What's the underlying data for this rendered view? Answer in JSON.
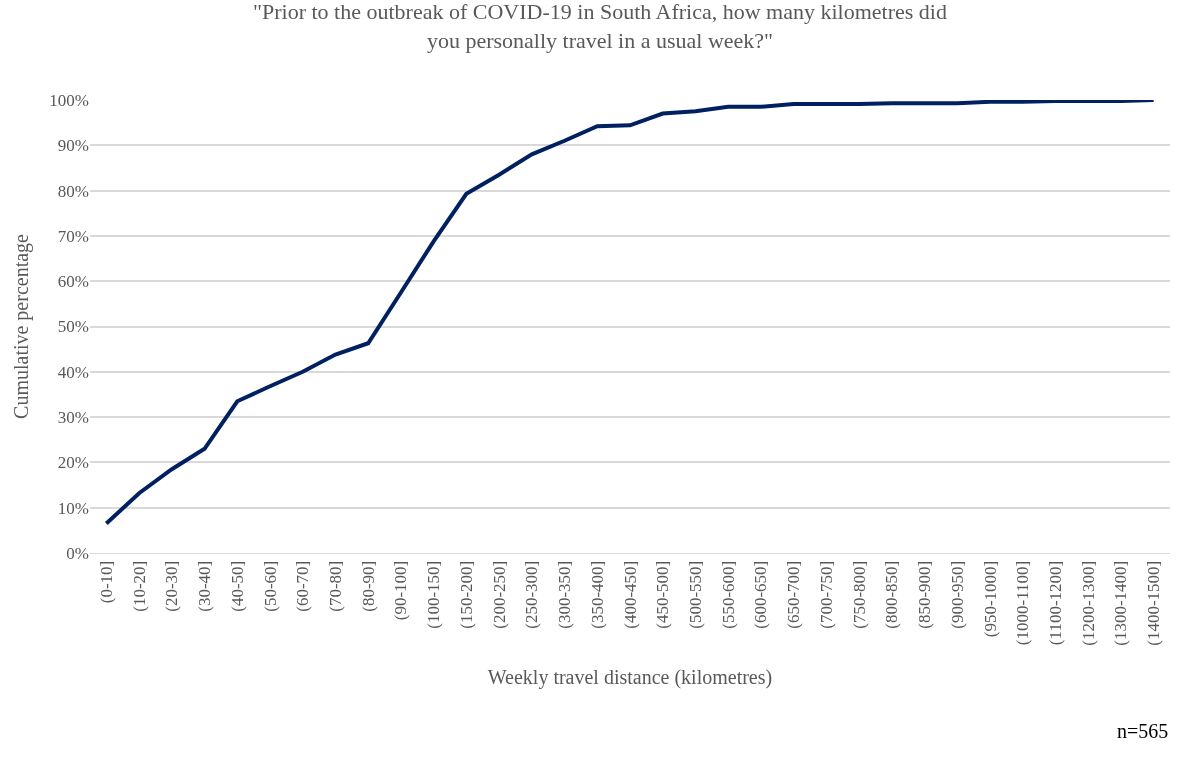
{
  "chart_data": {
    "type": "line",
    "title": "\"Prior to the outbreak of COVID-19 in South Africa, how many kilometres did you personally travel in a usual week?\"",
    "xlabel": "Weekly travel distance (kilometres)",
    "ylabel": "Cumulative percentage",
    "categories": [
      "(0-10]",
      "(10-20]",
      "(20-30]",
      "(30-40]",
      "(40-50]",
      "(50-60]",
      "(60-70]",
      "(70-80]",
      "(80-90]",
      "(90-100]",
      "(100-150]",
      "(150-200]",
      "(200-250]",
      "(250-300]",
      "(300-350]",
      "(350-400]",
      "(400-450]",
      "(450-500]",
      "(500-550]",
      "(550-600]",
      "(600-650]",
      "(650-700]",
      "(700-750]",
      "(750-800]",
      "(800-850]",
      "(850-900]",
      "(900-950]",
      "(950-1000]",
      "(1000-1100]",
      "(1100-1200]",
      "(1200-1300]",
      "(1300-1400]",
      "(1400-1500]"
    ],
    "series": [
      {
        "color": "#002060",
        "values": [
          6.5,
          13.2,
          18.5,
          23,
          33.5,
          36.8,
          40,
          43.8,
          46.3,
          57.5,
          68.8,
          79.3,
          83.5,
          88,
          91,
          94.2,
          94.4,
          97,
          97.5,
          98.5,
          98.5,
          99.1,
          99.1,
          99.1,
          99.3,
          99.3,
          99.3,
          99.6,
          99.6,
          99.8,
          99.8,
          99.8,
          100
        ]
      }
    ],
    "ylim": [
      0,
      100
    ],
    "yticks": [
      {
        "value": 0,
        "label": "0%"
      },
      {
        "value": 10,
        "label": "10%"
      },
      {
        "value": 20,
        "label": "20%"
      },
      {
        "value": 30,
        "label": "30%"
      },
      {
        "value": 40,
        "label": "40%"
      },
      {
        "value": 50,
        "label": "50%"
      },
      {
        "value": 60,
        "label": "60%"
      },
      {
        "value": 70,
        "label": "70%"
      },
      {
        "value": 80,
        "label": "80%"
      },
      {
        "value": 90,
        "label": "90%"
      },
      {
        "value": 100,
        "label": "100%"
      }
    ],
    "grid": "y",
    "marker": "none",
    "line_style": "solid",
    "annotations": [
      "n=565"
    ]
  }
}
